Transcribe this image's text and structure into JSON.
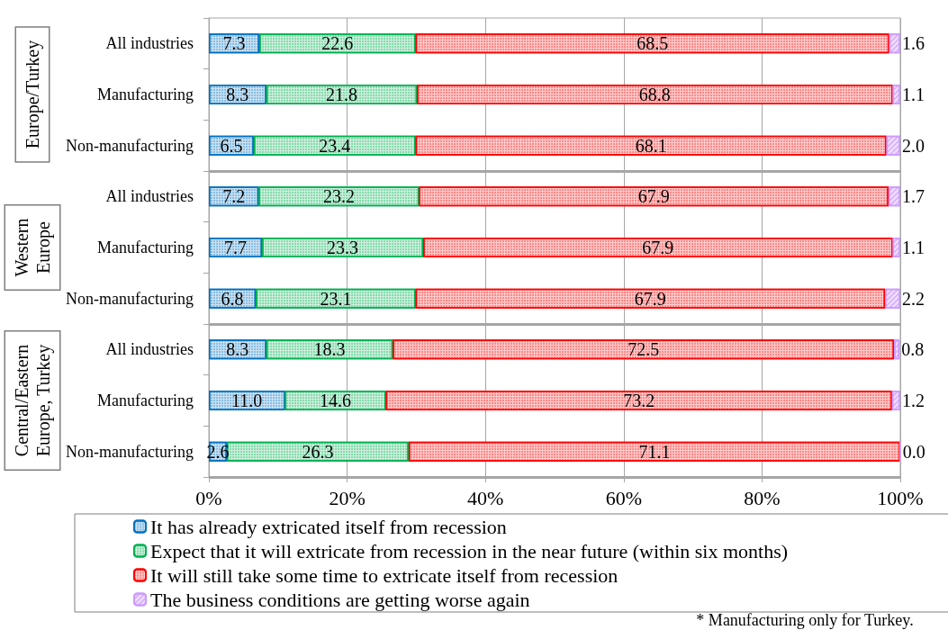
{
  "chart_data": {
    "type": "bar",
    "orientation": "horizontal",
    "stacked": true,
    "categories": [
      "All industries",
      "Manufacturing",
      "Non-manufacturing",
      "All industries",
      "Manufacturing",
      "Non-manufacturing",
      "All industries",
      "Manufacturing",
      "Non-manufacturing"
    ],
    "series": [
      {
        "name": "It has already extricated itself from recession",
        "color": "#0070c0",
        "values": [
          7.3,
          8.3,
          6.5,
          7.2,
          7.7,
          6.8,
          8.3,
          11.0,
          2.6
        ],
        "value_labels": [
          "7.3",
          "8.3",
          "6.5",
          "7.2",
          "7.7",
          "6.8",
          "8.3",
          "11.0",
          "2.6"
        ]
      },
      {
        "name": "Expect that it will extricate from recession in the near future (within six months)",
        "color": "#00b050",
        "values": [
          22.6,
          21.8,
          23.4,
          23.2,
          23.3,
          23.1,
          18.3,
          14.6,
          26.3
        ],
        "value_labels": [
          "22.6",
          "21.8",
          "23.4",
          "23.2",
          "23.3",
          "23.1",
          "18.3",
          "14.6",
          "26.3"
        ]
      },
      {
        "name": "It will still take some time to extricate itself from recession",
        "color": "#ff0000",
        "values": [
          68.5,
          68.8,
          68.1,
          67.9,
          67.9,
          67.9,
          72.5,
          73.2,
          71.1
        ],
        "value_labels": [
          "68.5",
          "68.8",
          "68.1",
          "67.9",
          "67.9",
          "67.9",
          "72.5",
          "73.2",
          "71.1"
        ]
      },
      {
        "name": "The business conditions are getting worse again",
        "color": "#cc99ff",
        "values": [
          1.6,
          1.1,
          2.0,
          1.7,
          1.1,
          2.2,
          0.8,
          1.2,
          0.0
        ],
        "value_labels": [
          "1.6",
          "1.1",
          "2.0",
          "1.7",
          "1.1",
          "2.2",
          "0.8",
          "1.2",
          "0.0"
        ]
      }
    ],
    "xlim": [
      0,
      100
    ],
    "xticks": [
      {
        "value": 0,
        "label": "0%"
      },
      {
        "value": 20,
        "label": "20%"
      },
      {
        "value": 40,
        "label": "40%"
      },
      {
        "value": 60,
        "label": "60%"
      },
      {
        "value": 80,
        "label": "80%"
      },
      {
        "value": 100,
        "label": "100%"
      }
    ],
    "grid": "x",
    "legend": "bottom",
    "annotations": [
      "Europe/Turkey",
      "Western\nEurope",
      "Central/Eastern\nEurope, Turkey",
      "* Manufacturing only for Turkey."
    ]
  }
}
